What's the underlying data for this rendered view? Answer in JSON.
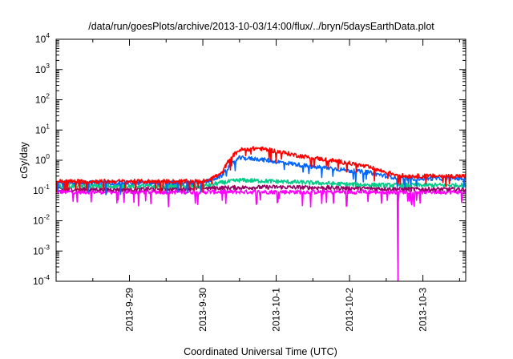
{
  "chart_data": {
    "type": "line",
    "title": "/data/run/goesPlots/archive/2013-10-03/14:00/flux/../bryn/5daysEarthData.plot",
    "xlabel": "Coordinated Universal Time (UTC)",
    "ylabel": "cGy/day",
    "yscale": "log",
    "ylim": [
      0.0001,
      10000
    ],
    "yticks": [
      {
        "base": "10",
        "exp": "-4"
      },
      {
        "base": "10",
        "exp": "-3"
      },
      {
        "base": "10",
        "exp": "-2"
      },
      {
        "base": "10",
        "exp": "-1"
      },
      {
        "base": "10",
        "exp": "0"
      },
      {
        "base": "10",
        "exp": "1"
      },
      {
        "base": "10",
        "exp": "2"
      },
      {
        "base": "10",
        "exp": "3"
      },
      {
        "base": "10",
        "exp": "4"
      }
    ],
    "xlim": [
      "2013-09-28 00:00",
      "2013-10-03 14:00"
    ],
    "xticks": [
      "2013-9-29",
      "2013-9-30",
      "2013-10-1",
      "2013-10-2",
      "2013-10-3"
    ],
    "xtick_dates": [
      "2013-09-29 00:00",
      "2013-09-30 00:00",
      "2013-10-01 00:00",
      "2013-10-02 00:00",
      "2013-10-03 00:00"
    ],
    "grid": false,
    "legend": "none",
    "series": [
      {
        "color": "#ff0000",
        "x": [
          "2013-09-28 00:00",
          "2013-09-28 12:00",
          "2013-09-29 00:00",
          "2013-09-29 12:00",
          "2013-09-30 00:00",
          "2013-09-30 06:00",
          "2013-09-30 09:00",
          "2013-09-30 12:00",
          "2013-09-30 18:00",
          "2013-10-01 00:00",
          "2013-10-01 06:00",
          "2013-10-01 12:00",
          "2013-10-01 18:00",
          "2013-10-02 00:00",
          "2013-10-02 06:00",
          "2013-10-02 12:00",
          "2013-10-02 18:00",
          "2013-10-03 00:00",
          "2013-10-03 06:00",
          "2013-10-03 14:00"
        ],
        "y": [
          0.2,
          0.2,
          0.2,
          0.2,
          0.2,
          0.35,
          1.2,
          2.2,
          2.5,
          2.0,
          1.5,
          1.2,
          1.0,
          0.8,
          0.6,
          0.4,
          0.3,
          0.3,
          0.3,
          0.3
        ]
      },
      {
        "color": "#0066ff",
        "x": [
          "2013-09-28 00:00",
          "2013-09-28 12:00",
          "2013-09-29 00:00",
          "2013-09-29 12:00",
          "2013-09-30 00:00",
          "2013-09-30 06:00",
          "2013-09-30 09:00",
          "2013-09-30 12:00",
          "2013-09-30 18:00",
          "2013-10-01 00:00",
          "2013-10-01 06:00",
          "2013-10-01 12:00",
          "2013-10-01 18:00",
          "2013-10-02 00:00",
          "2013-10-02 06:00",
          "2013-10-02 12:00",
          "2013-10-02 18:00",
          "2013-10-03 00:00",
          "2013-10-03 06:00",
          "2013-10-03 14:00"
        ],
        "y": [
          0.18,
          0.18,
          0.18,
          0.18,
          0.18,
          0.3,
          0.7,
          1.2,
          1.1,
          0.9,
          0.75,
          0.6,
          0.55,
          0.45,
          0.4,
          0.3,
          0.25,
          0.25,
          0.25,
          0.25
        ]
      },
      {
        "color": "#00cc88",
        "x": [
          "2013-09-28 00:00",
          "2013-09-29 00:00",
          "2013-09-30 00:00",
          "2013-09-30 06:00",
          "2013-09-30 12:00",
          "2013-10-01 00:00",
          "2013-10-01 12:00",
          "2013-10-02 00:00",
          "2013-10-02 12:00",
          "2013-10-03 00:00",
          "2013-10-03 14:00"
        ],
        "y": [
          0.14,
          0.14,
          0.14,
          0.18,
          0.22,
          0.2,
          0.18,
          0.16,
          0.15,
          0.15,
          0.15
        ]
      },
      {
        "color": "#990066",
        "x": [
          "2013-09-28 00:00",
          "2013-09-29 00:00",
          "2013-09-30 00:00",
          "2013-10-01 00:00",
          "2013-10-02 00:00",
          "2013-10-03 00:00",
          "2013-10-03 14:00"
        ],
        "y": [
          0.11,
          0.11,
          0.12,
          0.13,
          0.12,
          0.11,
          0.11
        ]
      },
      {
        "color": "#ff00ff",
        "x": [
          "2013-09-28 00:00",
          "2013-09-29 00:00",
          "2013-09-30 00:00",
          "2013-10-01 00:00",
          "2013-10-02 00:00",
          "2013-10-02 15:40",
          "2013-10-02 15:50",
          "2013-10-02 16:00",
          "2013-10-03 00:00",
          "2013-10-03 14:00"
        ],
        "y": [
          0.09,
          0.09,
          0.09,
          0.09,
          0.09,
          0.09,
          0.0001,
          0.09,
          0.09,
          0.09
        ]
      }
    ]
  }
}
